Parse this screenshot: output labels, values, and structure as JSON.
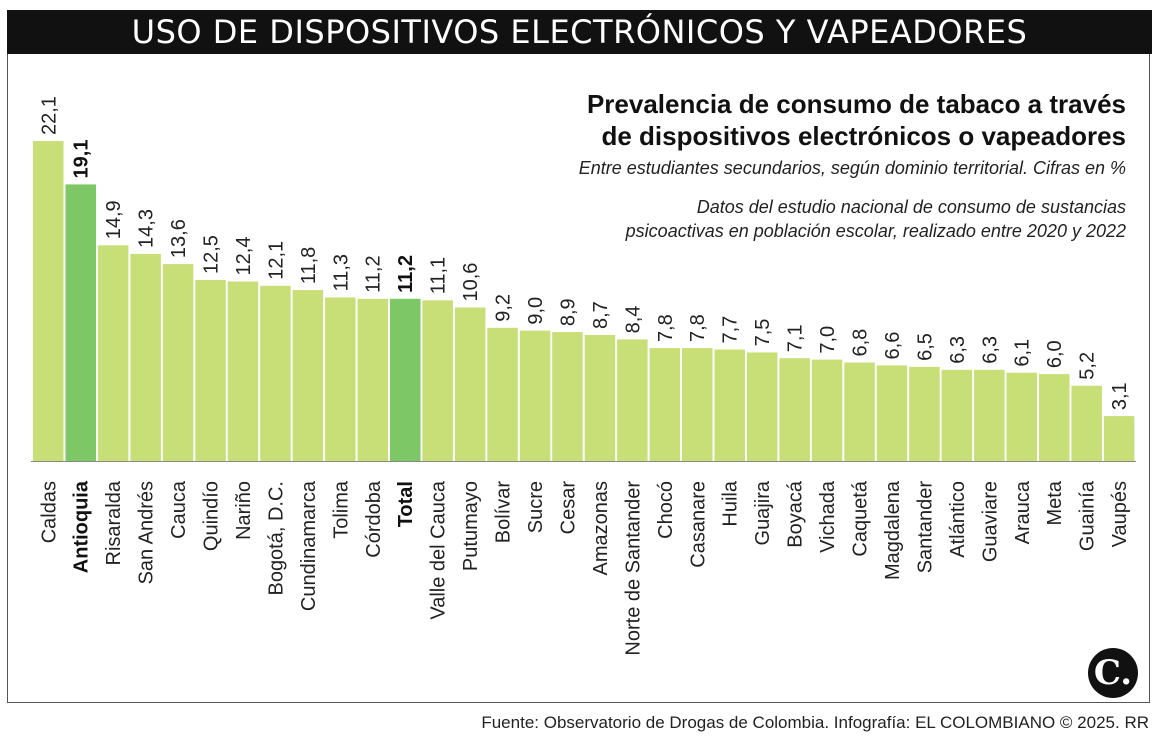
{
  "header": {
    "title": "USO DE DISPOSITIVOS ELECTRÓNICOS Y VAPEADORES"
  },
  "titles": {
    "line1": "Prevalencia de consumo de tabaco a través",
    "line2": "de dispositivos electrónicos o vapeadores",
    "subtitle": "Entre estudiantes secundarios, según dominio territorial. Cifras en %",
    "note1": "Datos del estudio nacional de consumo de sustancias",
    "note2": "psicoactivas en población escolar, realizado entre 2020 y 2022"
  },
  "source": "Fuente: Observatorio de Drogas de Colombia. Infografía: EL COLOMBIANO © 2025. RR",
  "logo": "C.",
  "colors": {
    "bar": "#c8de77",
    "highlight": "#7dc767",
    "header_bg": "#111111"
  },
  "chart_data": {
    "type": "bar",
    "title": "Prevalencia de consumo de tabaco a través de dispositivos electrónicos o vapeadores",
    "ylabel": "Cifras en %",
    "ylim": [
      0,
      22.1
    ],
    "categories": [
      "Caldas",
      "Antioquia",
      "Risaralda",
      "San Andrés",
      "Cauca",
      "Quindío",
      "Nariño",
      "Bogotá, D.C.",
      "Cundinamarca",
      "Tolima",
      "Córdoba",
      "Total",
      "Valle del Cauca",
      "Putumayo",
      "Bolívar",
      "Sucre",
      "Cesar",
      "Amazonas",
      "Norte de Santander",
      "Chocó",
      "Casanare",
      "Huila",
      "Guajira",
      "Boyacá",
      "Vichada",
      "Caquetá",
      "Magdalena",
      "Santander",
      "Atlántico",
      "Guaviare",
      "Arauca",
      "Meta",
      "Guainía",
      "Vaupés"
    ],
    "values": [
      22.1,
      19.1,
      14.9,
      14.3,
      13.6,
      12.5,
      12.4,
      12.1,
      11.8,
      11.3,
      11.2,
      11.2,
      11.1,
      10.6,
      9.2,
      9.0,
      8.9,
      8.7,
      8.4,
      7.8,
      7.8,
      7.7,
      7.5,
      7.1,
      7.0,
      6.8,
      6.6,
      6.5,
      6.3,
      6.3,
      6.1,
      6.0,
      5.2,
      3.1
    ],
    "value_labels": [
      "22,1",
      "19,1",
      "14,9",
      "14,3",
      "13,6",
      "12,5",
      "12,4",
      "12,1",
      "11,8",
      "11,3",
      "11,2",
      "11,2",
      "11,1",
      "10,6",
      "9,2",
      "9,0",
      "8,9",
      "8,7",
      "8,4",
      "7,8",
      "7,8",
      "7,7",
      "7,5",
      "7,1",
      "7,0",
      "6,8",
      "6,6",
      "6,5",
      "6,3",
      "6,3",
      "6,1",
      "6,0",
      "5,2",
      "3,1"
    ],
    "highlighted": [
      "Antioquia",
      "Total"
    ]
  }
}
